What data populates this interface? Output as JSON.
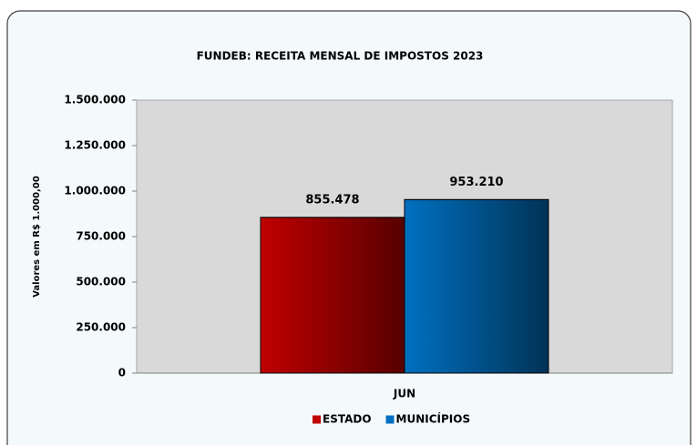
{
  "chart_data": {
    "type": "bar",
    "title": "FUNDEB: RECEITA MENSAL DE IMPOSTOS 2023",
    "y_label": "Valores em R$ 1.000,00",
    "categories": [
      "JUN"
    ],
    "series": [
      {
        "name": "ESTADO",
        "color": "#c00000",
        "values": [
          855478
        ],
        "value_labels": [
          "855.478"
        ]
      },
      {
        "name": "MUNICÍPIOS",
        "color": "#0070c0",
        "values": [
          953210
        ],
        "value_labels": [
          "953.210"
        ]
      }
    ],
    "ylim": [
      0,
      1500000
    ],
    "yticks": [
      0,
      {
        "value": 250000,
        "label": "250.000"
      },
      {
        "value": 500000,
        "label": "500.000"
      },
      {
        "value": 750000,
        "label": "750.000"
      },
      {
        "value": 1000000,
        "label": "1.000.000"
      },
      {
        "value": 1250000,
        "label": "1.250.000"
      },
      {
        "value": 1500000,
        "label": "1.500.000"
      }
    ],
    "legend": "bottom"
  }
}
